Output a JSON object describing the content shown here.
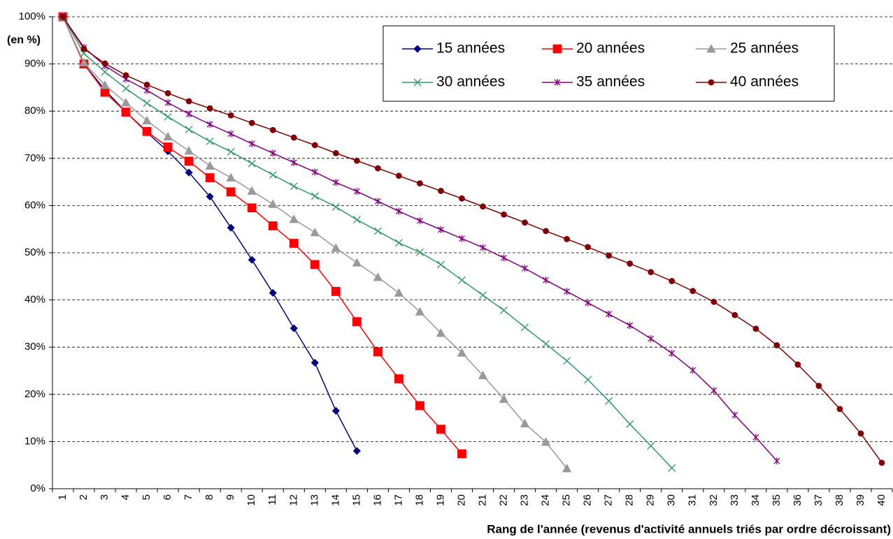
{
  "chart_data": {
    "type": "line",
    "ylabel": "(en %)",
    "xlabel": "Rang de l'année (revenus d'activité annuels triés par ordre décroissant)",
    "categories": [
      1,
      2,
      3,
      4,
      5,
      6,
      7,
      8,
      9,
      10,
      11,
      12,
      13,
      14,
      15,
      16,
      17,
      18,
      19,
      20,
      21,
      22,
      23,
      24,
      25,
      26,
      27,
      28,
      29,
      30,
      31,
      32,
      33,
      34,
      35,
      36,
      37,
      38,
      39,
      40
    ],
    "ylim": [
      0,
      100
    ],
    "yticks": [
      {
        "value": 0,
        "label": "0%"
      },
      {
        "value": 10,
        "label": "10%"
      },
      {
        "value": 20,
        "label": "20%"
      },
      {
        "value": 30,
        "label": "30%"
      },
      {
        "value": 40,
        "label": "40%"
      },
      {
        "value": 50,
        "label": "50%"
      },
      {
        "value": 60,
        "label": "60%"
      },
      {
        "value": 70,
        "label": "70%"
      },
      {
        "value": 80,
        "label": "80%"
      },
      {
        "value": 90,
        "label": "90%"
      },
      {
        "value": 100,
        "label": "100%"
      }
    ],
    "grid": true,
    "legend": "top-right",
    "series": [
      {
        "name": "15 années",
        "color": "#000080",
        "marker": "diamond",
        "values": [
          100,
          90,
          84.5,
          79.8,
          75.5,
          71.5,
          67,
          61.9,
          55.3,
          48.5,
          41.5,
          34,
          26.7,
          16.5,
          8,
          null,
          null,
          null,
          null,
          null,
          null,
          null,
          null,
          null,
          null,
          null,
          null,
          null,
          null,
          null,
          null,
          null,
          null,
          null,
          null,
          null,
          null,
          null,
          null,
          null
        ]
      },
      {
        "name": "20 années",
        "color": "#ff0000",
        "marker": "square",
        "values": [
          100,
          90,
          84,
          79.8,
          75.7,
          72.4,
          69.4,
          65.9,
          62.9,
          59.5,
          55.7,
          52,
          47.5,
          41.8,
          35.4,
          29,
          23.3,
          17.6,
          12.6,
          7.4,
          null,
          null,
          null,
          null,
          null,
          null,
          null,
          null,
          null,
          null,
          null,
          null,
          null,
          null,
          null,
          null,
          null,
          null,
          null,
          null
        ]
      },
      {
        "name": "25 années",
        "color": "#999999",
        "marker": "triangle",
        "values": [
          100,
          90.3,
          85.5,
          81.8,
          78,
          74.6,
          71.6,
          68.4,
          65.9,
          63.1,
          60.3,
          57.1,
          54.3,
          51,
          47.9,
          44.8,
          41.5,
          37.5,
          33,
          28.8,
          24,
          19,
          13.8,
          9.9,
          4.3,
          null,
          null,
          null,
          null,
          null,
          null,
          null,
          null,
          null,
          null,
          null,
          null,
          null,
          null,
          null
        ]
      },
      {
        "name": "30 années",
        "color": "#339966",
        "marker": "x",
        "values": [
          100,
          92.2,
          88.3,
          84.8,
          81.7,
          78.8,
          76.1,
          73.6,
          71.4,
          68.9,
          66.5,
          64.1,
          62,
          59.7,
          57,
          54.6,
          52.1,
          50.1,
          47.5,
          44.2,
          41,
          37.8,
          34.2,
          30.7,
          27.1,
          23.1,
          18.6,
          13.7,
          9.1,
          4.4,
          null,
          null,
          null,
          null,
          null,
          null,
          null,
          null,
          null,
          null
        ]
      },
      {
        "name": "35 années",
        "color": "#800080",
        "marker": "star",
        "values": [
          100,
          93.5,
          89.6,
          86.8,
          84.4,
          81.8,
          79.4,
          77.2,
          75.2,
          73.1,
          71.1,
          69.1,
          67.1,
          64.9,
          63,
          60.9,
          58.8,
          56.8,
          54.9,
          53,
          51.1,
          48.9,
          46.7,
          44.2,
          41.8,
          39.4,
          37,
          34.6,
          31.8,
          28.7,
          25.1,
          20.8,
          15.6,
          10.9,
          5.9,
          null,
          null,
          null,
          null,
          null
        ]
      },
      {
        "name": "40 années",
        "color": "#800000",
        "marker": "circle",
        "values": [
          100,
          93.2,
          90.1,
          87.6,
          85.6,
          83.8,
          82.1,
          80.6,
          79.1,
          77.5,
          76,
          74.4,
          72.8,
          71.1,
          69.5,
          67.9,
          66.3,
          64.7,
          63.1,
          61.5,
          59.8,
          58.1,
          56.4,
          54.6,
          52.9,
          51.2,
          49.4,
          47.7,
          45.9,
          44,
          41.9,
          39.6,
          36.8,
          33.9,
          30.4,
          26.3,
          21.8,
          16.9,
          11.7,
          5.5
        ]
      }
    ]
  }
}
